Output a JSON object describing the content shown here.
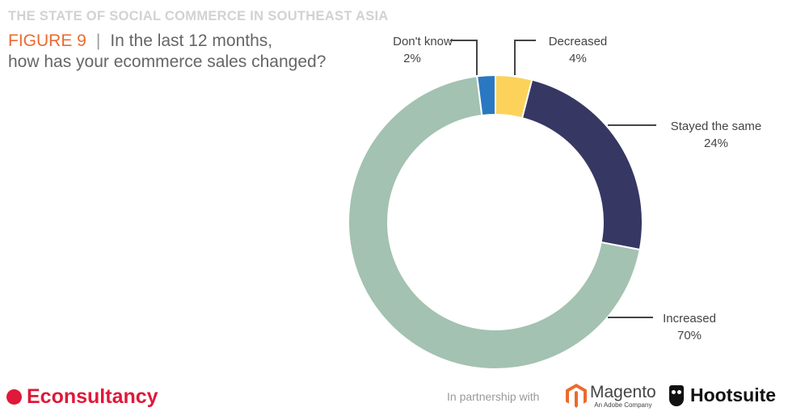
{
  "header": {
    "super_title": "THE STATE OF SOCIAL COMMERCE IN SOUTHEAST ASIA",
    "figure": "FIGURE 9",
    "separator": "|",
    "question_line1": "In the last 12 months,",
    "question_line2": "how has your ecommerce sales changed?"
  },
  "chart_data": {
    "type": "pie",
    "donut": true,
    "title": "In the last 12 months, how has your ecommerce sales changed?",
    "slices": [
      {
        "label": "Decreased",
        "value": 4,
        "display": "4%",
        "color": "#fcd25a"
      },
      {
        "label": "Stayed the same",
        "value": 24,
        "display": "24%",
        "color": "#363763"
      },
      {
        "label": "Increased",
        "value": 70,
        "display": "70%",
        "color": "#a3c2b1"
      },
      {
        "label": "Don't know",
        "value": 2,
        "display": "2%",
        "color": "#2a78c2"
      }
    ]
  },
  "footer": {
    "brand": "Econsultancy",
    "partnership": "In partnership with",
    "magento": "Magento",
    "magento_sub": "An Adobe Company",
    "hootsuite": "Hootsuite"
  },
  "colors": {
    "accent": "#ec6a2f",
    "brand": "#e0183a"
  }
}
